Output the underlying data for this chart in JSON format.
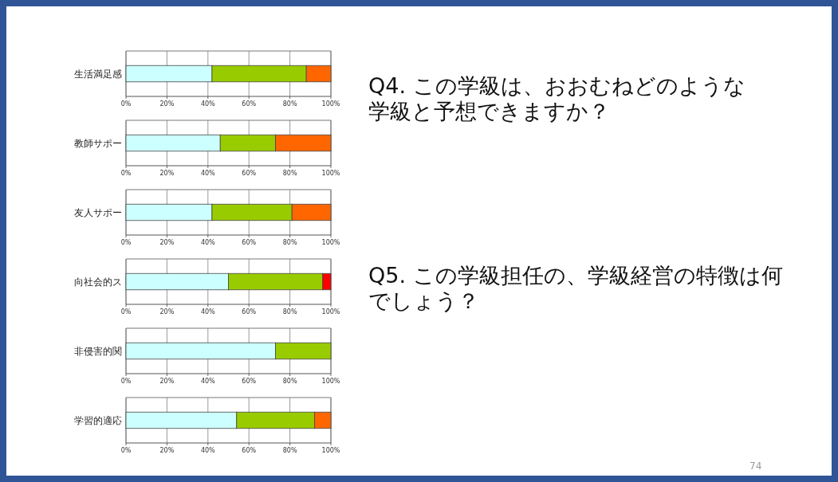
{
  "chart_data": [
    {
      "type": "bar",
      "orientation": "horizontal",
      "stacked": true,
      "grid": "x",
      "categories": [
        "生活満足感"
      ],
      "xlim": [
        0,
        100
      ],
      "xticks": [
        {
          "value": 0,
          "label": "0%"
        },
        {
          "value": 20,
          "label": "20%"
        },
        {
          "value": 40,
          "label": "40%"
        },
        {
          "value": 60,
          "label": "60%"
        },
        {
          "value": 80,
          "label": "80%"
        },
        {
          "value": 100,
          "label": "100%"
        }
      ],
      "series": [
        {
          "color": "#ccffff",
          "values": [
            42
          ]
        },
        {
          "color": "#99cc00",
          "values": [
            46
          ]
        },
        {
          "color": "#ff6600",
          "values": [
            12
          ]
        }
      ]
    },
    {
      "type": "bar",
      "orientation": "horizontal",
      "stacked": true,
      "grid": "x",
      "categories": [
        "教師サポー"
      ],
      "xlim": [
        0,
        100
      ],
      "xticks": [
        {
          "value": 0,
          "label": "0%"
        },
        {
          "value": 20,
          "label": "20%"
        },
        {
          "value": 40,
          "label": "40%"
        },
        {
          "value": 60,
          "label": "60%"
        },
        {
          "value": 80,
          "label": "80%"
        },
        {
          "value": 100,
          "label": "100%"
        }
      ],
      "series": [
        {
          "color": "#ccffff",
          "values": [
            46
          ]
        },
        {
          "color": "#99cc00",
          "values": [
            27
          ]
        },
        {
          "color": "#ff6600",
          "values": [
            27
          ]
        }
      ]
    },
    {
      "type": "bar",
      "orientation": "horizontal",
      "stacked": true,
      "grid": "x",
      "categories": [
        "友人サポー"
      ],
      "xlim": [
        0,
        100
      ],
      "xticks": [
        {
          "value": 0,
          "label": "0%"
        },
        {
          "value": 20,
          "label": "20%"
        },
        {
          "value": 40,
          "label": "40%"
        },
        {
          "value": 60,
          "label": "60%"
        },
        {
          "value": 80,
          "label": "80%"
        },
        {
          "value": 100,
          "label": "100%"
        }
      ],
      "series": [
        {
          "color": "#ccffff",
          "values": [
            42
          ]
        },
        {
          "color": "#99cc00",
          "values": [
            39
          ]
        },
        {
          "color": "#ff6600",
          "values": [
            19
          ]
        }
      ]
    },
    {
      "type": "bar",
      "orientation": "horizontal",
      "stacked": true,
      "grid": "x",
      "categories": [
        "向社会的ス"
      ],
      "xlim": [
        0,
        100
      ],
      "xticks": [
        {
          "value": 0,
          "label": "0%"
        },
        {
          "value": 20,
          "label": "20%"
        },
        {
          "value": 40,
          "label": "40%"
        },
        {
          "value": 60,
          "label": "60%"
        },
        {
          "value": 80,
          "label": "80%"
        },
        {
          "value": 100,
          "label": "100%"
        }
      ],
      "series": [
        {
          "color": "#ccffff",
          "values": [
            50
          ]
        },
        {
          "color": "#99cc00",
          "values": [
            46
          ]
        },
        {
          "color": "#ff0000",
          "values": [
            4
          ]
        }
      ]
    },
    {
      "type": "bar",
      "orientation": "horizontal",
      "stacked": true,
      "grid": "x",
      "categories": [
        "非侵害的関"
      ],
      "xlim": [
        0,
        100
      ],
      "xticks": [
        {
          "value": 0,
          "label": "0%"
        },
        {
          "value": 20,
          "label": "20%"
        },
        {
          "value": 40,
          "label": "40%"
        },
        {
          "value": 60,
          "label": "60%"
        },
        {
          "value": 80,
          "label": "80%"
        },
        {
          "value": 100,
          "label": "100%"
        }
      ],
      "series": [
        {
          "color": "#ccffff",
          "values": [
            73
          ]
        },
        {
          "color": "#99cc00",
          "values": [
            27
          ]
        }
      ]
    },
    {
      "type": "bar",
      "orientation": "horizontal",
      "stacked": true,
      "grid": "x",
      "categories": [
        "学習的適応"
      ],
      "xlim": [
        0,
        100
      ],
      "xticks": [
        {
          "value": 0,
          "label": "0%"
        },
        {
          "value": 20,
          "label": "20%"
        },
        {
          "value": 40,
          "label": "40%"
        },
        {
          "value": 60,
          "label": "60%"
        },
        {
          "value": 80,
          "label": "80%"
        },
        {
          "value": 100,
          "label": "100%"
        }
      ],
      "series": [
        {
          "color": "#ccffff",
          "values": [
            54
          ]
        },
        {
          "color": "#99cc00",
          "values": [
            38
          ]
        },
        {
          "color": "#ff6600",
          "values": [
            8
          ]
        }
      ]
    },
    {
      "type": "other",
      "annotations": [
        "Q4. この学級は、おおむねどのような学級と予想できますか？",
        "Q5. この学級担任の、学級経営の特徴は何でしょう？",
        "74"
      ]
    }
  ]
}
